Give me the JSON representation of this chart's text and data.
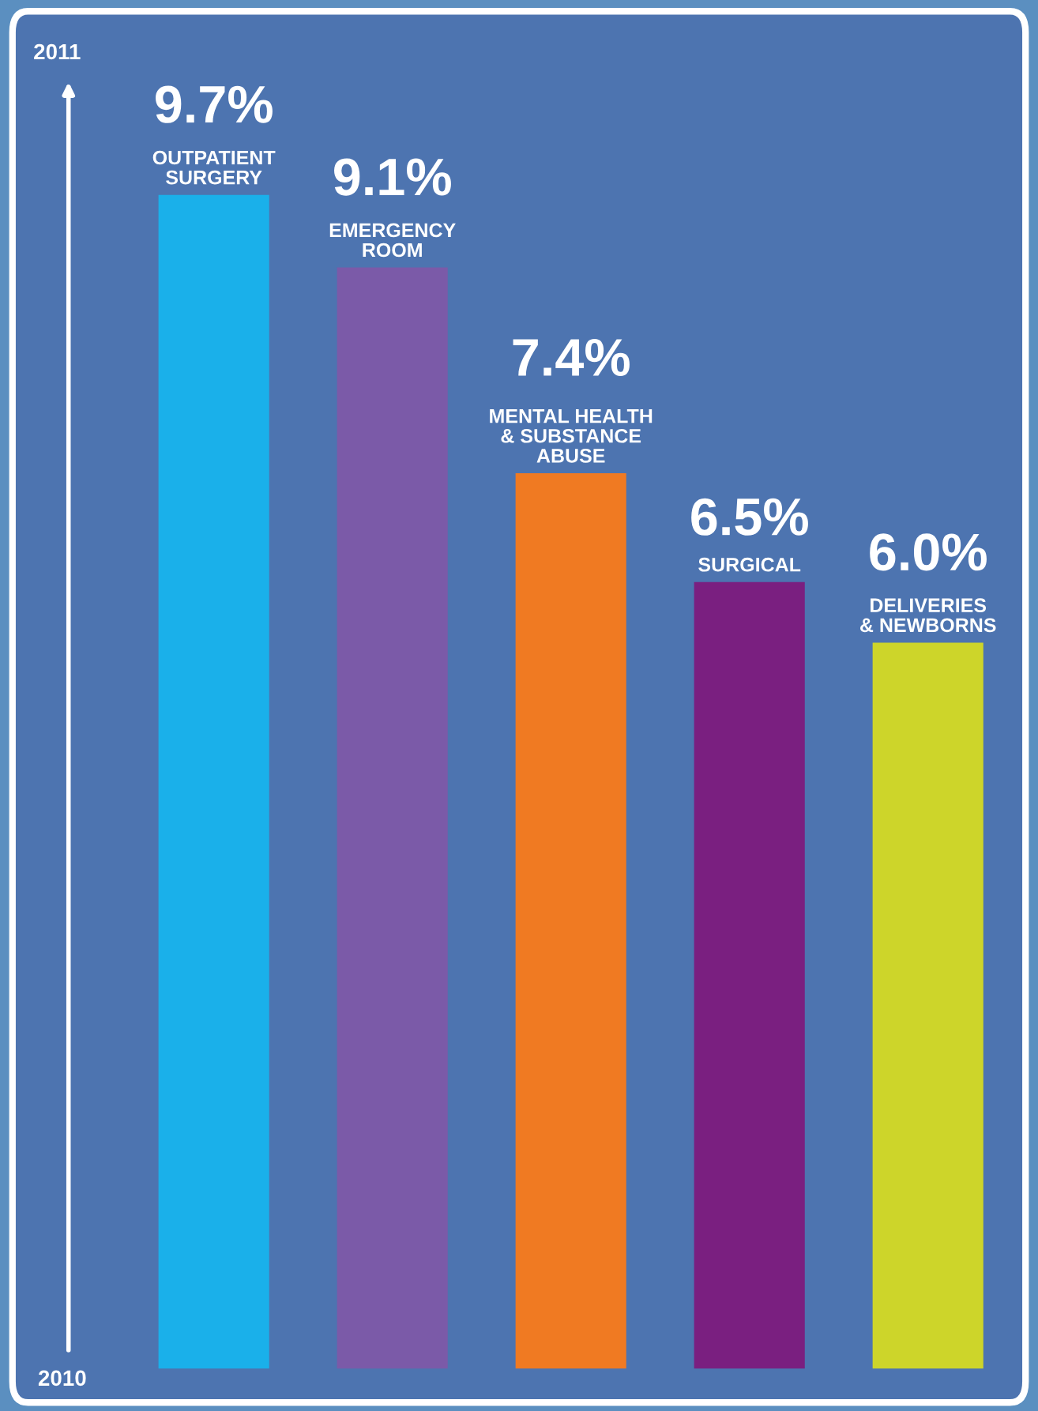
{
  "chart_data": {
    "type": "bar",
    "categories": [
      "OUTPATIENT\nSURGERY",
      "EMERGENCY\nROOM",
      "MENTAL HEALTH\n& SUBSTANCE\nABUSE",
      "SURGICAL",
      "DELIVERIES\n& NEWBORNS"
    ],
    "values": [
      9.7,
      9.1,
      7.4,
      6.5,
      6.0
    ],
    "value_labels": [
      "9.7%",
      "9.1%",
      "7.4%",
      "6.5%",
      "6.0%"
    ],
    "colors": [
      "#1ab0ea",
      "#7b5aa8",
      "#f07a22",
      "#7a1f80",
      "#cdd52a"
    ],
    "annotations": [
      "2011",
      "2010"
    ]
  }
}
